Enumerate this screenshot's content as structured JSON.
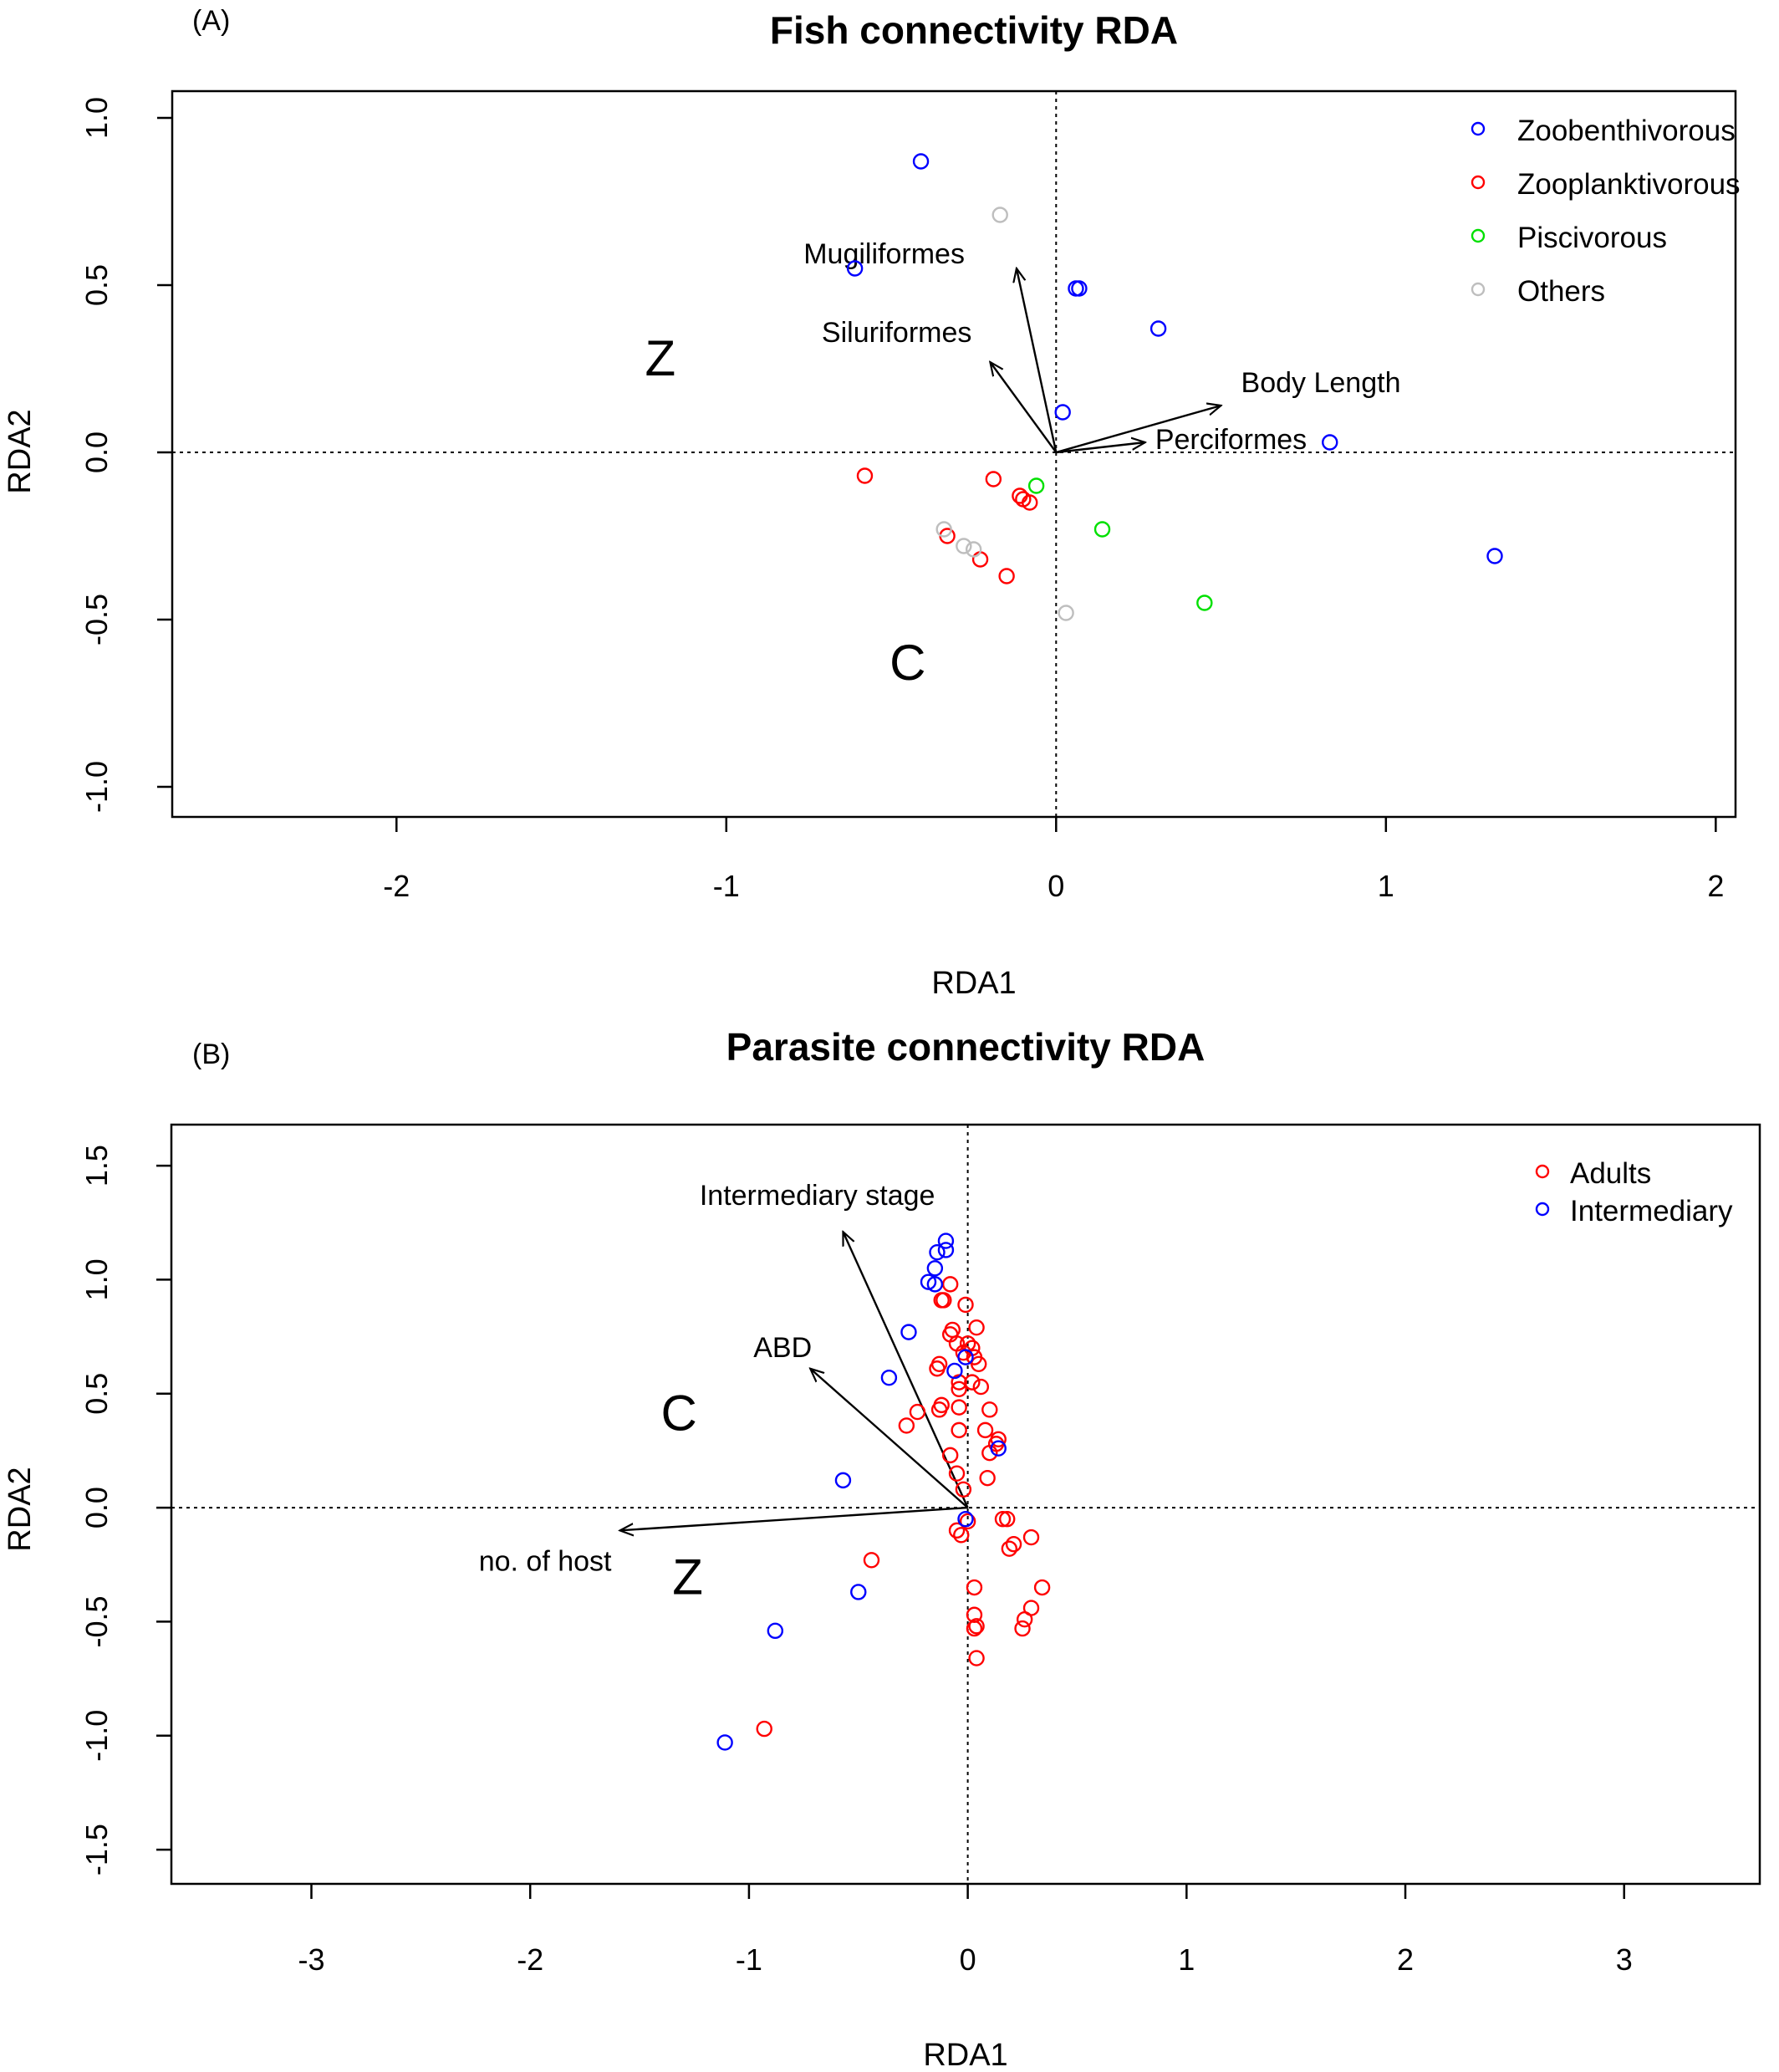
{
  "chart_data": [
    {
      "type": "scatter",
      "panel_label": "(A)",
      "title": "Fish connectivity RDA",
      "xlabel": "RDA1",
      "ylabel": "RDA2",
      "xlim": [
        -2.68,
        2.06
      ],
      "ylim": [
        -1.09,
        1.08
      ],
      "x_ticks": [
        -2,
        -1,
        0,
        1,
        2
      ],
      "y_ticks": [
        -1.0,
        -0.5,
        0.0,
        0.5,
        1.0
      ],
      "x_tick_labels": [
        "-2",
        "-1",
        "0",
        "1",
        "2"
      ],
      "y_tick_labels": [
        "-1.0",
        "-0.5",
        "0.0",
        "0.5",
        "1.0"
      ],
      "grid": false,
      "reference_lines": {
        "x": 0,
        "y": 0
      },
      "legend": {
        "position": "top-right",
        "entries": [
          {
            "label": "Zoobenthivorous",
            "color": "#0000ff"
          },
          {
            "label": "Zooplanktivorous",
            "color": "#ff0000"
          },
          {
            "label": "Piscivorous",
            "color": "#00e000"
          },
          {
            "label": "Others",
            "color": "#bebebe"
          }
        ]
      },
      "series": [
        {
          "name": "Zoobenthivorous",
          "color": "#0000ff",
          "points": [
            [
              -0.41,
              0.87
            ],
            [
              -0.61,
              0.55
            ],
            [
              0.06,
              0.49
            ],
            [
              0.07,
              0.49
            ],
            [
              0.31,
              0.37
            ],
            [
              0.02,
              0.12
            ],
            [
              0.83,
              0.03
            ],
            [
              1.33,
              -0.31
            ]
          ]
        },
        {
          "name": "Zooplanktivorous",
          "color": "#ff0000",
          "points": [
            [
              -0.58,
              -0.07
            ],
            [
              -0.19,
              -0.08
            ],
            [
              -0.11,
              -0.13
            ],
            [
              -0.1,
              -0.14
            ],
            [
              -0.08,
              -0.15
            ],
            [
              -0.33,
              -0.25
            ],
            [
              -0.23,
              -0.32
            ],
            [
              -0.15,
              -0.37
            ]
          ]
        },
        {
          "name": "Piscivorous",
          "color": "#00e000",
          "points": [
            [
              -0.06,
              -0.1
            ],
            [
              0.14,
              -0.23
            ],
            [
              0.45,
              -0.45
            ]
          ]
        },
        {
          "name": "Others",
          "color": "#bebebe",
          "points": [
            [
              -0.17,
              0.71
            ],
            [
              -0.34,
              -0.23
            ],
            [
              -0.28,
              -0.28
            ],
            [
              -0.25,
              -0.29
            ],
            [
              0.03,
              -0.48
            ]
          ]
        }
      ],
      "vectors": [
        {
          "label": "Mugiliformes",
          "x": -0.12,
          "y": 0.55
        },
        {
          "label": "Siluriformes",
          "x": -0.2,
          "y": 0.27
        },
        {
          "label": "Body Length",
          "x": 0.5,
          "y": 0.14
        },
        {
          "label": "Perciformes",
          "x": 0.27,
          "y": 0.03
        }
      ],
      "annotations": [
        {
          "text": "Z",
          "x": -1.2,
          "y": 0.23
        },
        {
          "text": "C",
          "x": -0.45,
          "y": -0.68
        }
      ]
    },
    {
      "type": "scatter",
      "panel_label": "(B)",
      "title": "Parasite connectivity RDA",
      "xlabel": "RDA1",
      "ylabel": "RDA2",
      "xlim": [
        -3.64,
        3.62
      ],
      "ylim": [
        -1.65,
        1.68
      ],
      "x_ticks": [
        -3,
        -2,
        -1,
        0,
        1,
        2,
        3
      ],
      "y_ticks": [
        -1.5,
        -1.0,
        -0.5,
        0.0,
        0.5,
        1.0,
        1.5
      ],
      "x_tick_labels": [
        "-3",
        "-2",
        "-1",
        "0",
        "1",
        "2",
        "3"
      ],
      "y_tick_labels": [
        "-1.5",
        "-1.0",
        "-0.5",
        "0.0",
        "0.5",
        "1.0",
        "1.5"
      ],
      "grid": false,
      "reference_lines": {
        "x": 0,
        "y": 0
      },
      "legend": {
        "position": "top-right",
        "entries": [
          {
            "label": "Adults",
            "color": "#ff0000"
          },
          {
            "label": "Intermediary",
            "color": "#0000ff"
          }
        ]
      },
      "series": [
        {
          "name": "Adults",
          "color": "#ff0000",
          "points": [
            [
              -0.08,
              0.98
            ],
            [
              -0.11,
              0.91
            ],
            [
              -0.12,
              0.91
            ],
            [
              -0.01,
              0.89
            ],
            [
              -0.07,
              0.78
            ],
            [
              -0.08,
              0.76
            ],
            [
              0.04,
              0.79
            ],
            [
              -0.05,
              0.72
            ],
            [
              0.0,
              0.72
            ],
            [
              0.02,
              0.7
            ],
            [
              0.03,
              0.66
            ],
            [
              -0.02,
              0.68
            ],
            [
              -0.14,
              0.61
            ],
            [
              -0.13,
              0.63
            ],
            [
              0.05,
              0.63
            ],
            [
              -0.04,
              0.55
            ],
            [
              -0.04,
              0.52
            ],
            [
              0.02,
              0.55
            ],
            [
              0.06,
              0.53
            ],
            [
              -0.23,
              0.42
            ],
            [
              -0.28,
              0.36
            ],
            [
              -0.12,
              0.45
            ],
            [
              -0.13,
              0.43
            ],
            [
              -0.04,
              0.44
            ],
            [
              0.1,
              0.43
            ],
            [
              0.08,
              0.34
            ],
            [
              -0.04,
              0.34
            ],
            [
              0.14,
              0.3
            ],
            [
              0.13,
              0.28
            ],
            [
              0.1,
              0.24
            ],
            [
              -0.08,
              0.23
            ],
            [
              -0.05,
              0.15
            ],
            [
              -0.02,
              0.08
            ],
            [
              0.09,
              0.13
            ],
            [
              0.16,
              -0.05
            ],
            [
              0.18,
              -0.05
            ],
            [
              0.19,
              -0.18
            ],
            [
              0.21,
              -0.16
            ],
            [
              0.29,
              -0.13
            ],
            [
              0.34,
              -0.35
            ],
            [
              0.29,
              -0.44
            ],
            [
              0.26,
              -0.49
            ],
            [
              0.25,
              -0.53
            ],
            [
              0.03,
              -0.35
            ],
            [
              0.03,
              -0.47
            ],
            [
              0.04,
              -0.52
            ],
            [
              0.03,
              -0.53
            ],
            [
              0.04,
              -0.66
            ],
            [
              -0.05,
              -0.1
            ],
            [
              -0.03,
              -0.12
            ],
            [
              0.0,
              -0.06
            ],
            [
              -0.44,
              -0.23
            ],
            [
              -0.93,
              -0.97
            ]
          ]
        },
        {
          "name": "Intermediary",
          "color": "#0000ff",
          "points": [
            [
              -0.1,
              1.17
            ],
            [
              -0.1,
              1.13
            ],
            [
              -0.14,
              1.12
            ],
            [
              -0.15,
              1.05
            ],
            [
              -0.18,
              0.99
            ],
            [
              -0.15,
              0.98
            ],
            [
              -0.27,
              0.77
            ],
            [
              -0.36,
              0.57
            ],
            [
              -0.06,
              0.6
            ],
            [
              -0.01,
              0.66
            ],
            [
              0.14,
              0.26
            ],
            [
              -0.57,
              0.12
            ],
            [
              -0.01,
              -0.05
            ],
            [
              -0.5,
              -0.37
            ],
            [
              -0.88,
              -0.54
            ],
            [
              -1.11,
              -1.03
            ]
          ]
        }
      ],
      "vectors": [
        {
          "label": "Intermediary stage",
          "x": -0.57,
          "y": 1.21
        },
        {
          "label": "ABD",
          "x": -0.72,
          "y": 0.61
        },
        {
          "label": "no. of host",
          "x": -1.59,
          "y": -0.1
        }
      ],
      "annotations": [
        {
          "text": "C",
          "x": -1.32,
          "y": 0.34
        },
        {
          "text": "Z",
          "x": -1.28,
          "y": -0.38
        }
      ]
    }
  ]
}
